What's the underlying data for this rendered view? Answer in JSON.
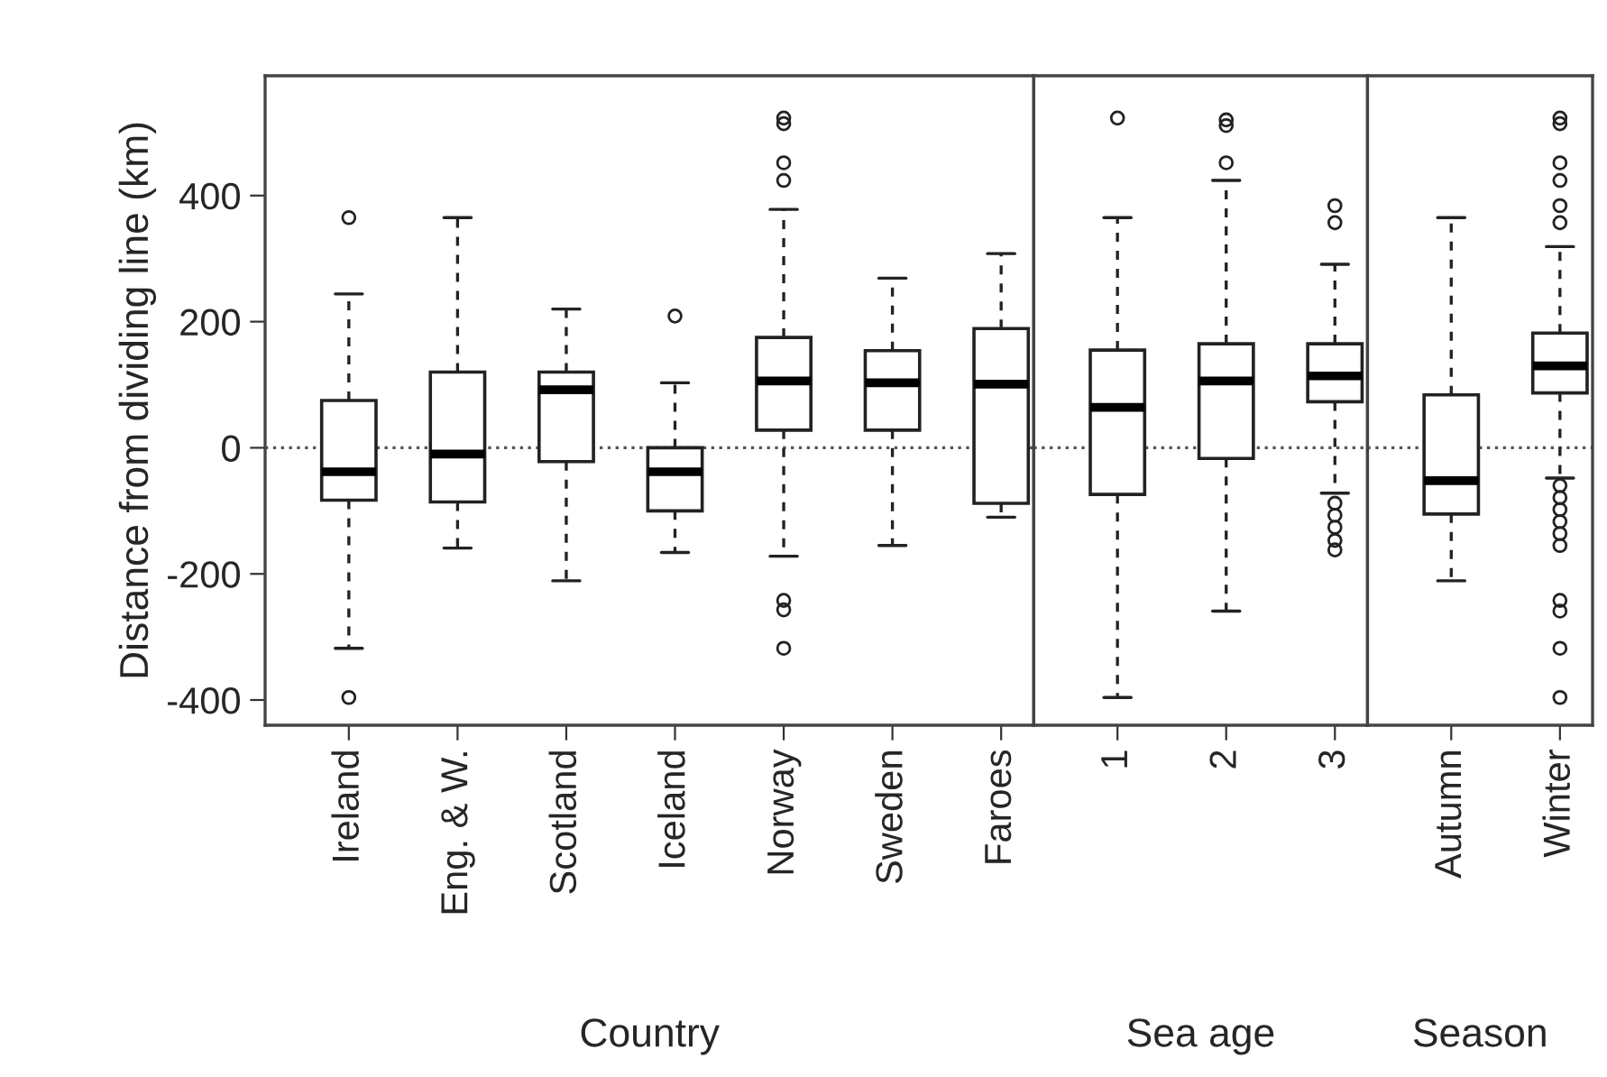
{
  "chart_data": [
    {
      "type": "box",
      "xlabel": "Country",
      "ylabel": "Distance from dividing line (km)",
      "categories": [
        "Ireland",
        "Eng. & W.",
        "Scotland",
        "Iceland",
        "Norway",
        "Sweden",
        "Faroes"
      ],
      "ylim": [
        -440,
        590
      ],
      "yticks": [
        -400,
        -200,
        0,
        200,
        400
      ],
      "ref_lines": [
        {
          "axis": "y",
          "value": 0,
          "line_style": "dotted"
        }
      ],
      "boxes": [
        {
          "low": -318,
          "q1": -83,
          "median": -38,
          "q3": 75,
          "high": 244,
          "outliers": [
            365,
            -396
          ]
        },
        {
          "low": -159,
          "q1": -86,
          "median": -10,
          "q3": 120,
          "high": 365
        },
        {
          "low": -211,
          "q1": -22,
          "median": 92,
          "q3": 120,
          "high": 220
        },
        {
          "low": -166,
          "q1": -100,
          "median": -38,
          "q3": 0,
          "high": 103,
          "outliers": [
            209
          ]
        },
        {
          "low": -172,
          "q1": 28,
          "median": 106,
          "q3": 175,
          "high": 378,
          "outliers": [
            523,
            514,
            452,
            424,
            -242,
            -257,
            -318
          ]
        },
        {
          "low": -155,
          "q1": 28,
          "median": 103,
          "q3": 154,
          "high": 269
        },
        {
          "low": -110,
          "q1": -88,
          "median": 101,
          "q3": 189,
          "high": 308
        }
      ]
    },
    {
      "type": "box",
      "xlabel": "Sea age",
      "categories": [
        "1",
        "2",
        "3"
      ],
      "ylim": [
        -440,
        590
      ],
      "yticks": [
        -400,
        -200,
        0,
        200,
        400
      ],
      "tick_labels": "x",
      "ref_lines": [
        {
          "axis": "y",
          "value": 0,
          "line_style": "dotted"
        }
      ],
      "boxes": [
        {
          "low": -396,
          "q1": -74,
          "median": 64,
          "q3": 155,
          "high": 365,
          "outliers": [
            523
          ]
        },
        {
          "low": -259,
          "q1": -17,
          "median": 106,
          "q3": 165,
          "high": 424,
          "outliers": [
            520,
            511,
            452
          ]
        },
        {
          "low": -72,
          "q1": 73,
          "median": 114,
          "q3": 165,
          "high": 291,
          "outliers": [
            384,
            357,
            -88,
            -107,
            -126,
            -147,
            -162
          ]
        }
      ]
    },
    {
      "type": "box",
      "xlabel": "Season",
      "categories": [
        "Autumn",
        "Winter"
      ],
      "ylim": [
        -440,
        590
      ],
      "yticks": [
        -400,
        -200,
        0,
        200,
        400
      ],
      "tick_labels": "x",
      "ref_lines": [
        {
          "axis": "y",
          "value": 0,
          "line_style": "dotted"
        }
      ],
      "boxes": [
        {
          "low": -211,
          "q1": -105,
          "median": -52,
          "q3": 84,
          "high": 365
        },
        {
          "low": -48,
          "q1": 87,
          "median": 130,
          "q3": 182,
          "high": 319,
          "outliers": [
            523,
            514,
            452,
            424,
            384,
            357,
            -60,
            -79,
            -98,
            -117,
            -136,
            -155,
            -242,
            -259,
            -318,
            -396
          ]
        }
      ]
    }
  ]
}
